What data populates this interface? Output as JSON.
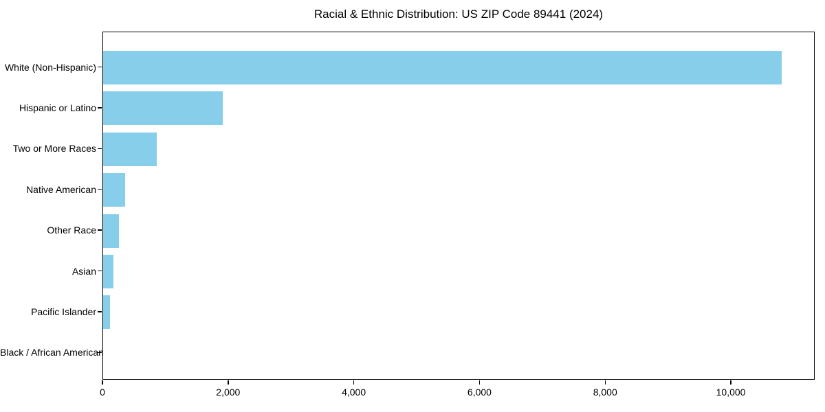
{
  "chart_data": {
    "type": "bar",
    "orientation": "horizontal",
    "title": "Racial & Ethnic Distribution: US ZIP Code 89441 (2024)",
    "categories": [
      "White (Non-Hispanic)",
      "Hispanic or Latino",
      "Two or More Races",
      "Native American",
      "Other Race",
      "Asian",
      "Pacific Islander",
      "Black / African American"
    ],
    "values": [
      10800,
      1900,
      850,
      350,
      250,
      160,
      110,
      0
    ],
    "xlabel": "",
    "ylabel": "",
    "xlim": [
      0,
      11334
    ],
    "xticks": [
      0,
      2000,
      4000,
      6000,
      8000,
      10000
    ],
    "xtick_labels": [
      "0",
      "2,000",
      "4,000",
      "6,000",
      "8,000",
      "10,000"
    ],
    "bar_color": "#87CEEB",
    "axis_color": "#000000",
    "background": "#FFFFFF",
    "grid": false,
    "legend": null
  }
}
